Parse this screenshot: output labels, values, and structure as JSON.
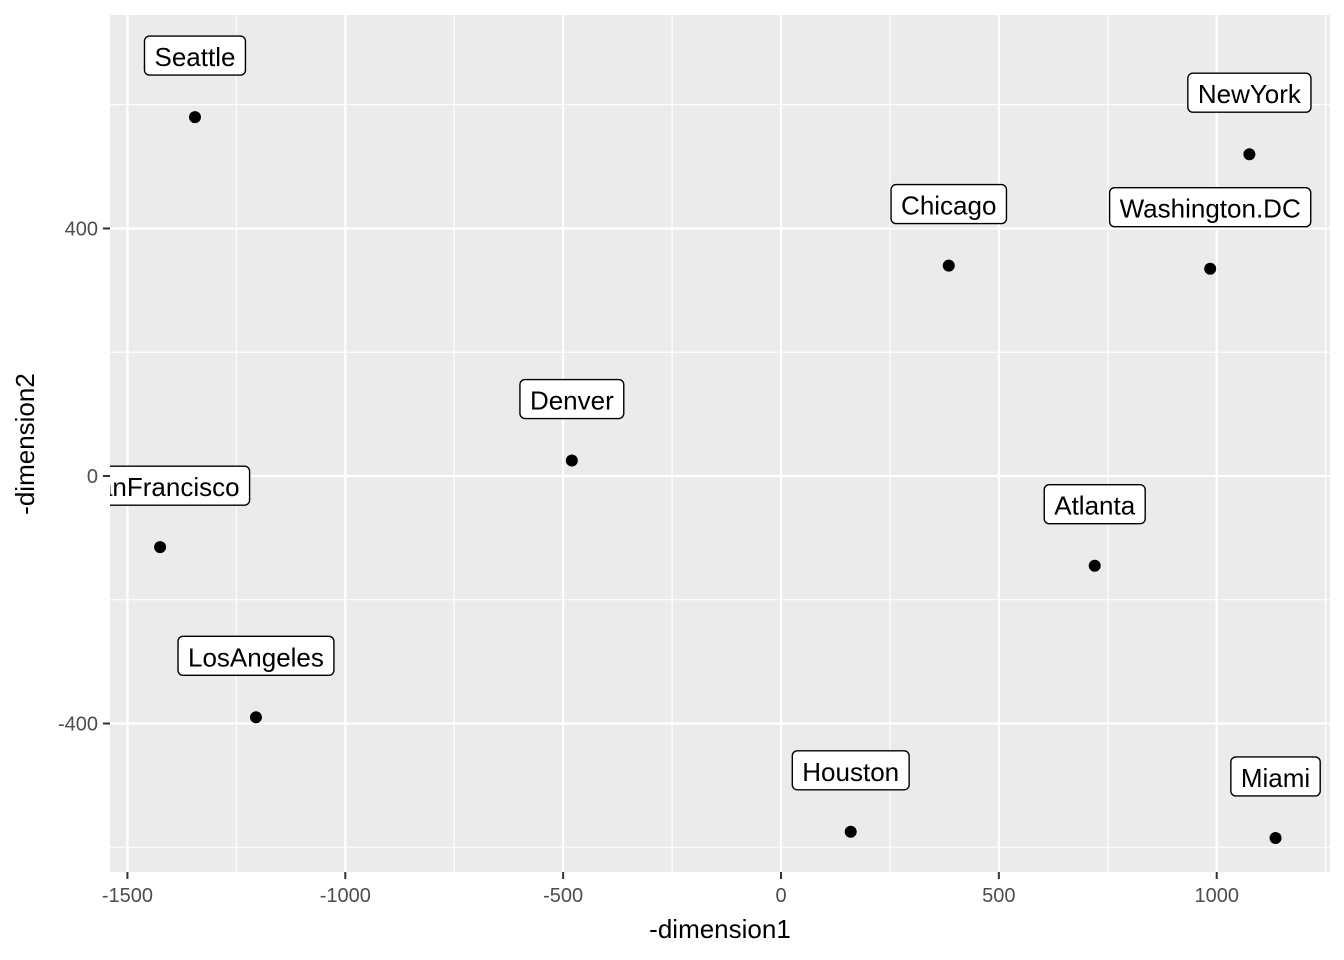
{
  "chart_data": {
    "type": "scatter",
    "xlabel": "-dimension1",
    "ylabel": "-dimension2",
    "xlim": [
      -1540,
      1260
    ],
    "ylim": [
      -640,
      745
    ],
    "x_ticks": [
      -1500,
      -1000,
      -500,
      0,
      500,
      1000
    ],
    "x_tick_labels": [
      "-1500",
      "-1000",
      "-500",
      "0",
      "500",
      "1000"
    ],
    "y_ticks": [
      -400,
      0,
      400
    ],
    "y_tick_labels": [
      "-400",
      "0",
      "400"
    ],
    "grid": true,
    "points": [
      {
        "label": "Seattle",
        "x": -1345,
        "y": 580
      },
      {
        "label": "NewYork",
        "x": 1075,
        "y": 520
      },
      {
        "label": "Chicago",
        "x": 385,
        "y": 340
      },
      {
        "label": "Washington.DC",
        "x": 985,
        "y": 335
      },
      {
        "label": "Denver",
        "x": -480,
        "y": 25
      },
      {
        "label": "SanFrancisco",
        "x": -1425,
        "y": -115
      },
      {
        "label": "Atlanta",
        "x": 720,
        "y": -145
      },
      {
        "label": "LosAngeles",
        "x": -1205,
        "y": -390
      },
      {
        "label": "Houston",
        "x": 160,
        "y": -575
      },
      {
        "label": "Miami",
        "x": 1135,
        "y": -585
      }
    ]
  }
}
